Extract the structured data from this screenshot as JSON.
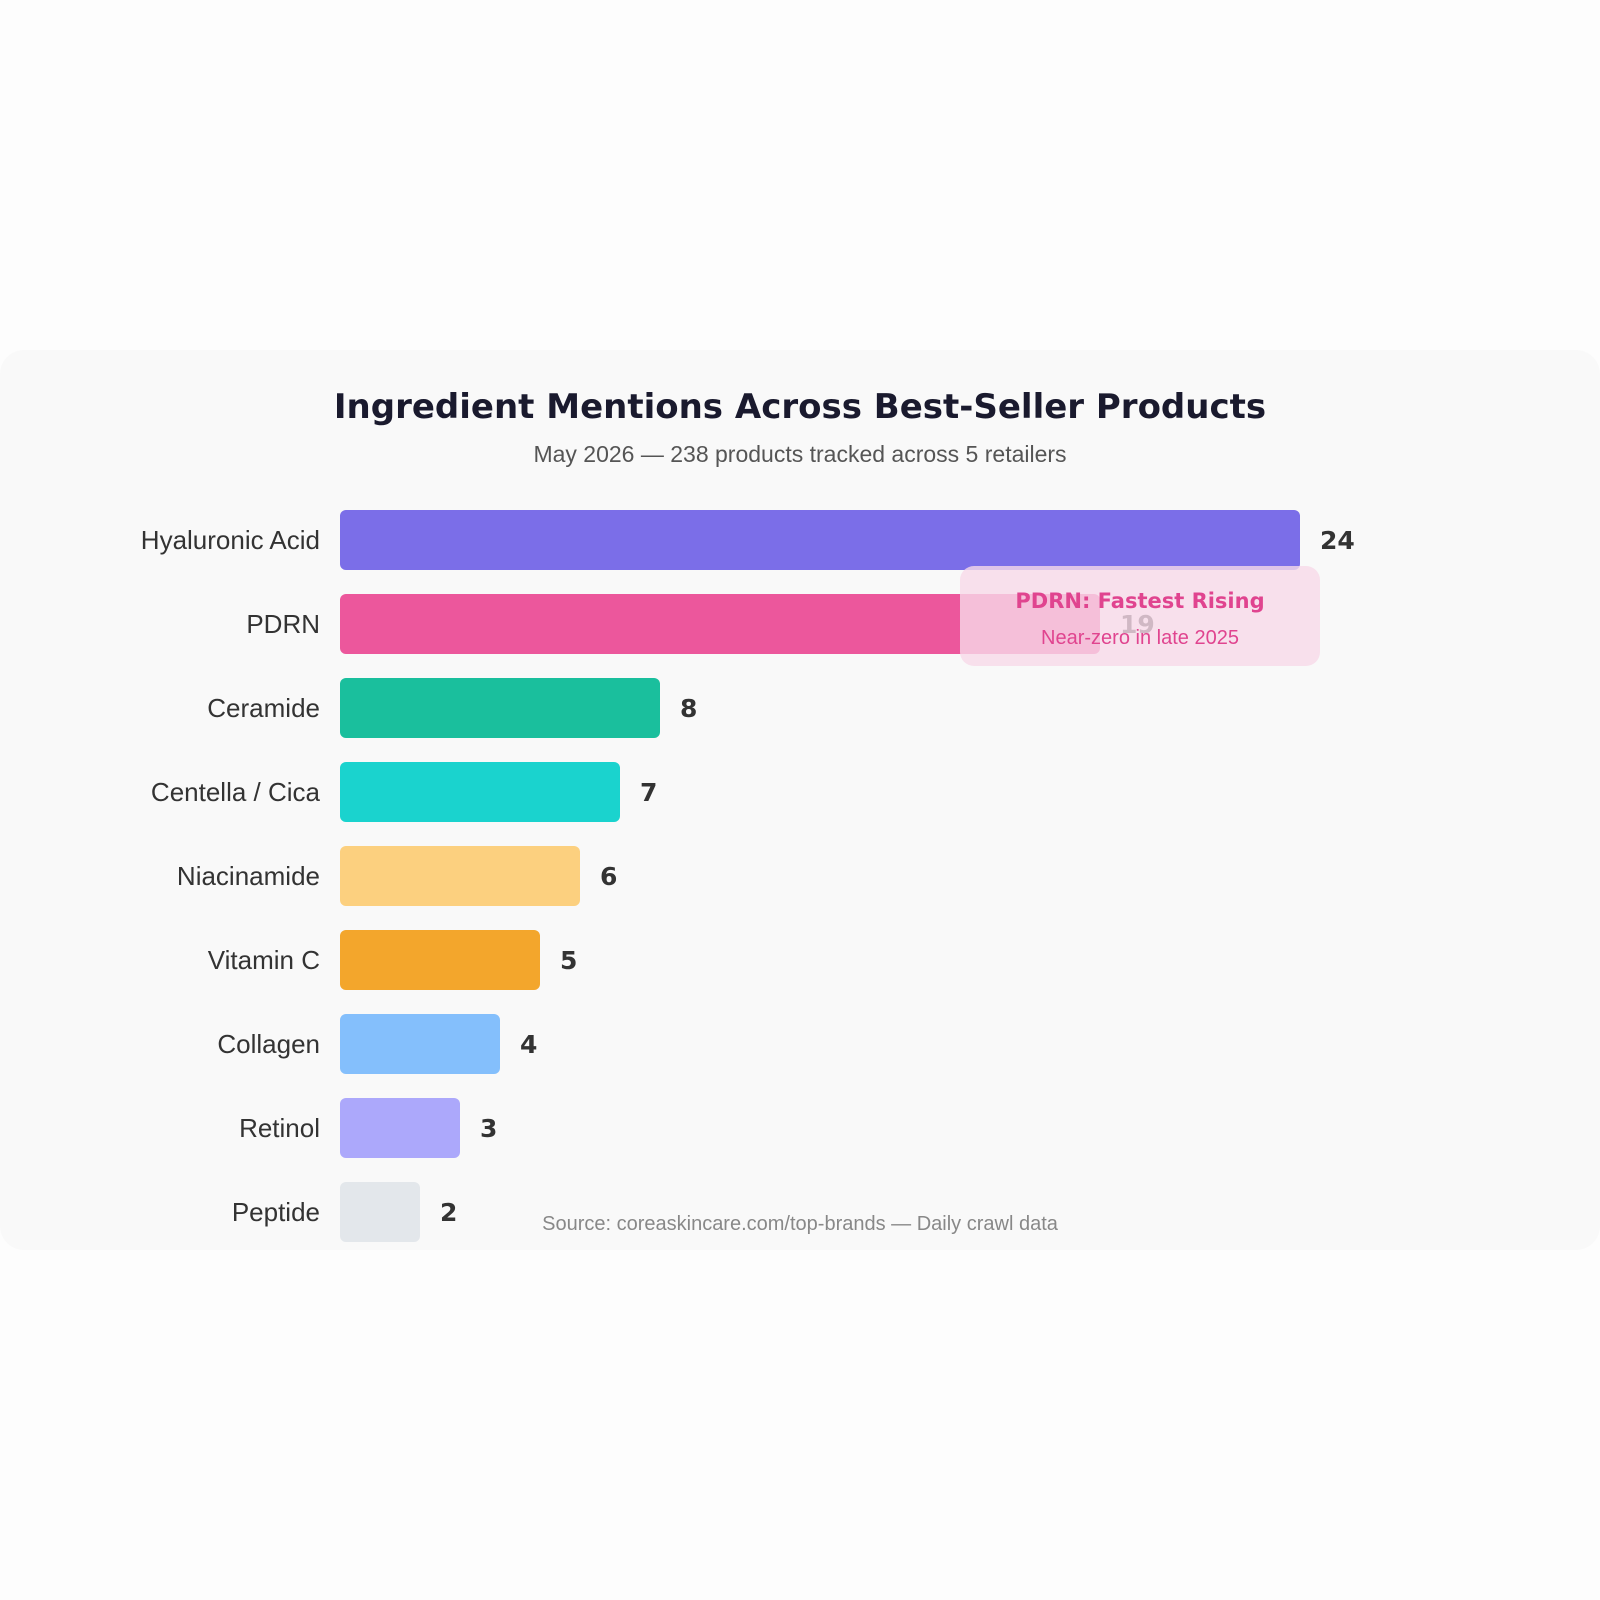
{
  "chart_data": {
    "type": "bar",
    "orientation": "horizontal",
    "title": "Ingredient Mentions Across Best-Seller Products",
    "subtitle": "May 2026 — 238 products tracked across 5 retailers",
    "categories": [
      "Hyaluronic Acid",
      "PDRN",
      "Ceramide",
      "Centella / Cica",
      "Niacinamide",
      "Vitamin C",
      "Collagen",
      "Retinol",
      "Peptide"
    ],
    "values": [
      24,
      19,
      8,
      7,
      6,
      5,
      4,
      3,
      2
    ],
    "value_labels": [
      "24",
      "19",
      "8",
      "7",
      "6",
      "5",
      "4",
      "3",
      "2"
    ],
    "colors": [
      "#7b6ee8",
      "#ec579c",
      "#1abf9d",
      "#1ad3ce",
      "#fcd07f",
      "#f3a62c",
      "#84bffc",
      "#aca8fb",
      "#e3e7eb"
    ],
    "xlim": [
      0,
      24
    ],
    "grid": false,
    "legend": "none",
    "annotation": {
      "title": "PDRN: Fastest Rising",
      "subtitle": "Near-zero in late 2025",
      "color": "#e0448f",
      "background": "#f8d9e8"
    },
    "source": "Source: coreaskincare.com/top-brands — Daily crawl data"
  }
}
